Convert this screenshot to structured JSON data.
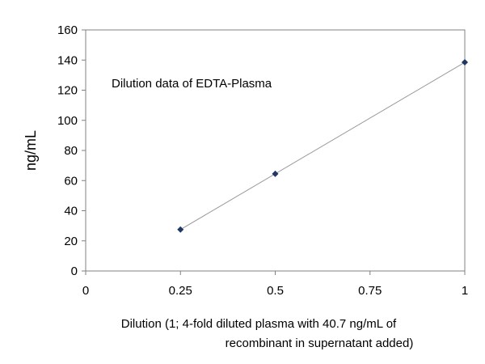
{
  "chart_data": {
    "type": "scatter",
    "title": "",
    "annotation": "Dilution data of EDTA-Plasma",
    "xlabel_lines": [
      "Dilution (1; 4-fold diluted plasma  with 40.7 ng/mL of",
      "recombinant in supernatant added)"
    ],
    "ylabel": "ng/mL",
    "xlim": [
      0,
      1
    ],
    "ylim": [
      0,
      160
    ],
    "x_ticks": [
      0,
      0.25,
      0.5,
      0.75,
      1
    ],
    "x_tick_labels": [
      "0",
      "0.25",
      "0.5",
      "0.75",
      "1"
    ],
    "y_ticks": [
      0,
      20,
      40,
      60,
      80,
      100,
      120,
      140,
      160
    ],
    "y_tick_labels": [
      "0",
      "20",
      "40",
      "60",
      "80",
      "100",
      "120",
      "140",
      "160"
    ],
    "grid": false,
    "series": [
      {
        "x": [
          0.25,
          0.5,
          1
        ],
        "y": [
          27.5,
          64.5,
          138.5
        ],
        "marker_color": "#1f3864",
        "trendline": true,
        "trendline_color": "#999999"
      }
    ]
  }
}
